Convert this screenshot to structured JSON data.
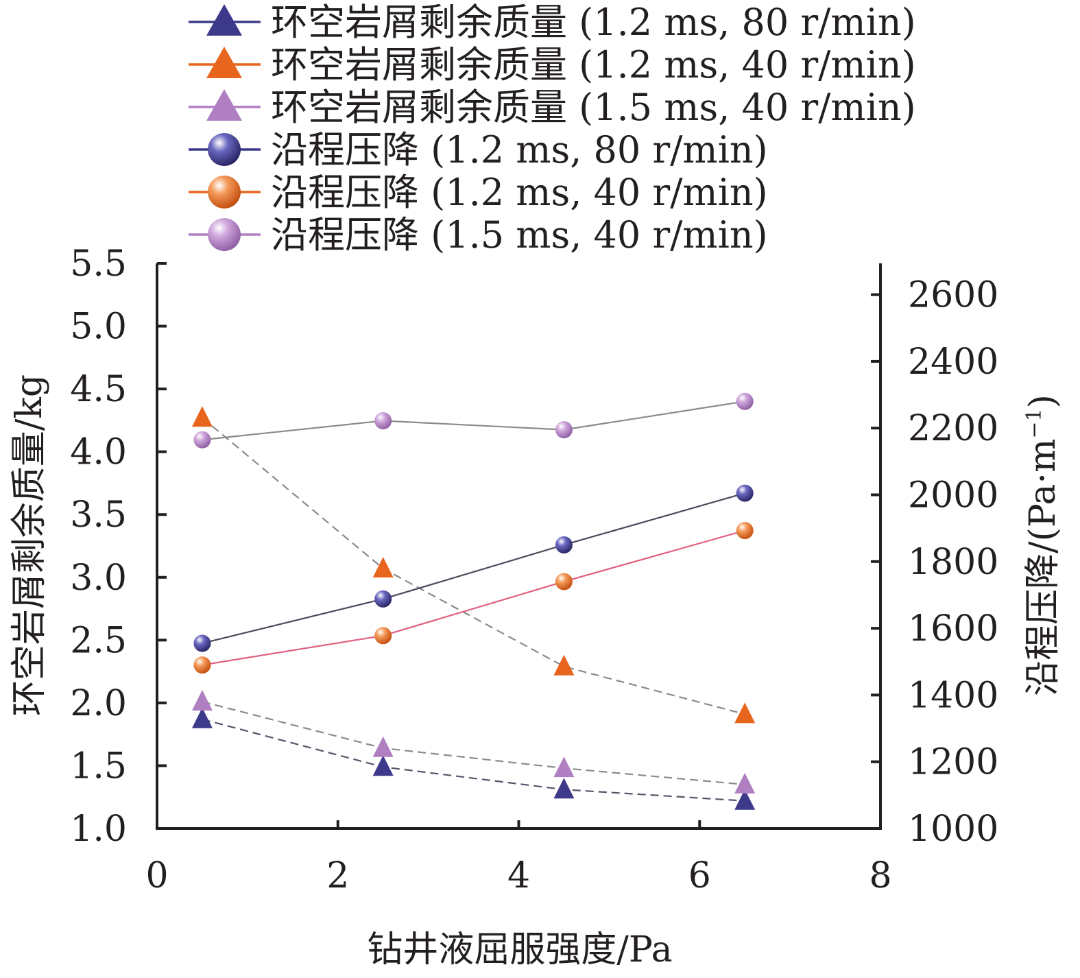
{
  "chart_data": {
    "type": "line",
    "xlabel": "钻井液屈服强度/Pa",
    "ylabel": "环空岩屑剩余质量/kg",
    "y2label": "沿程压降/(Pa·m",
    "y2label_sup": "−1",
    "y2label_close": ")",
    "xlim": [
      0,
      8
    ],
    "ylim": [
      1.0,
      5.5
    ],
    "y2lim": [
      1000,
      2700
    ],
    "xticks": [
      "0",
      "2",
      "4",
      "6",
      "8"
    ],
    "yticks": [
      "1.0",
      "1.5",
      "2.0",
      "2.5",
      "3.0",
      "3.5",
      "4.0",
      "4.5",
      "5.0",
      "5.5"
    ],
    "y2ticks": [
      "1000",
      "1200",
      "1400",
      "1600",
      "1800",
      "2000",
      "2200",
      "2400",
      "2600"
    ],
    "grid": false,
    "legend_position": "top",
    "x": [
      0.5,
      2.5,
      4.5,
      6.5
    ],
    "series": [
      {
        "name": "环空岩屑剩余质量 (1.2 ms, 80 r/min)",
        "axis": "left",
        "marker": "triangle",
        "line": "dashed",
        "color": "#3d3a8c",
        "line_color": "#55556a",
        "values": [
          1.87,
          1.49,
          1.31,
          1.22
        ]
      },
      {
        "name": "环空岩屑剩余质量 (1.2 ms, 40 r/min)",
        "axis": "left",
        "marker": "triangle",
        "line": "dashed",
        "color": "#e8651e",
        "line_color": "#8a8a8a",
        "values": [
          4.27,
          3.07,
          2.29,
          1.91
        ]
      },
      {
        "name": "环空岩屑剩余质量 (1.5 ms, 40 r/min)",
        "axis": "left",
        "marker": "triangle",
        "line": "dashed",
        "color": "#b07fc2",
        "line_color": "#8a8a8a",
        "values": [
          2.01,
          1.64,
          1.48,
          1.35
        ]
      },
      {
        "name": "沿程压降 (1.2 ms, 80 r/min)",
        "axis": "right",
        "marker": "sphere",
        "line": "solid",
        "color": "#3d3a8c",
        "line_color": "#4a4a5a",
        "values": [
          1555,
          1688,
          1850,
          2005
        ]
      },
      {
        "name": "沿程压降 (1.2 ms, 40 r/min)",
        "axis": "right",
        "marker": "sphere",
        "line": "solid",
        "color": "#e8651e",
        "line_color": "#e06080",
        "values": [
          1490,
          1578,
          1740,
          1893
        ]
      },
      {
        "name": "沿程压降 (1.5 ms, 40 r/min)",
        "axis": "right",
        "marker": "sphere",
        "line": "solid",
        "color": "#b07fc2",
        "line_color": "#8a8a8a",
        "values": [
          2165,
          2222,
          2195,
          2280
        ]
      }
    ]
  }
}
